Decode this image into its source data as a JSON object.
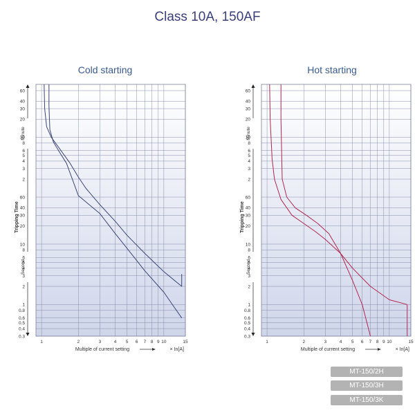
{
  "page": {
    "title": "Class 10A, 150AF",
    "models": [
      "MT-150/2H",
      "MT-150/3H",
      "MT-150/3K"
    ]
  },
  "chart_data": [
    {
      "type": "line",
      "title": "Cold starting",
      "xlabel": "Multiple of current setting",
      "x_unit": "× In[A]",
      "ylabel": "Tripping Time",
      "y_unit_minute": "Minute",
      "y_unit_second": "Second",
      "x_scale": "log",
      "y_scale": "log",
      "xlim": [
        0.9,
        15
      ],
      "x_ticks": [
        1,
        2,
        3,
        4,
        5,
        6,
        7,
        8,
        9,
        10,
        15
      ],
      "y_ticks_minute": [
        60,
        40,
        30,
        20,
        10,
        8,
        6,
        5,
        4,
        3,
        2
      ],
      "y_ticks_second": [
        60,
        40,
        30,
        20,
        10,
        8,
        6,
        5,
        4,
        3,
        2,
        1,
        0.8,
        0.6,
        0.5,
        0.4,
        0.3
      ],
      "grid": true,
      "color": "#3a4575",
      "series": [
        {
          "x": [
            1.05,
            1.06,
            1.1,
            1.2,
            1.4,
            1.7,
            2.0,
            2.3,
            3,
            4,
            5,
            7,
            10,
            14,
            14
          ],
          "y_seconds": [
            4800,
            1800,
            900,
            600,
            390,
            225,
            130,
            90,
            45,
            24,
            14,
            7,
            3.5,
            2,
            3.2
          ]
        },
        {
          "x": [
            1.15,
            1.15,
            1.17,
            1.25,
            1.4,
            1.6,
            2.0,
            3,
            4,
            5,
            7,
            10,
            14
          ],
          "y_seconds": [
            4800,
            2000,
            800,
            500,
            340,
            220,
            65,
            32,
            15,
            8.5,
            3.6,
            1.6,
            0.6
          ]
        }
      ]
    },
    {
      "type": "line",
      "title": "Hot starting",
      "xlabel": "Multiple of current setting",
      "x_unit": "× In[A]",
      "ylabel": "Tripping Time",
      "y_unit_minute": "Minute",
      "y_unit_second": "Second",
      "x_scale": "log",
      "y_scale": "log",
      "xlim": [
        0.9,
        15
      ],
      "x_ticks": [
        1,
        2,
        3,
        4,
        5,
        6,
        7,
        8,
        9,
        10,
        15
      ],
      "y_ticks_minute": [
        60,
        40,
        30,
        20,
        10,
        8,
        6,
        5,
        4,
        3,
        2
      ],
      "y_ticks_second": [
        60,
        40,
        30,
        20,
        10,
        8,
        6,
        5,
        4,
        3,
        2,
        1,
        0.8,
        0.6,
        0.5,
        0.4,
        0.3
      ],
      "grid": true,
      "color": "#b0264f",
      "series": [
        {
          "x": [
            1.05,
            1.06,
            1.1,
            1.15,
            1.3,
            1.6,
            2.0,
            2.5,
            3,
            4,
            5,
            7,
            10,
            14,
            14
          ],
          "y_seconds": [
            4800,
            1200,
            260,
            120,
            55,
            30,
            22,
            16,
            12,
            7,
            4,
            2,
            1.2,
            1,
            0.3
          ]
        },
        {
          "x": [
            1.3,
            1.3,
            1.33,
            1.45,
            1.7,
            2.1,
            2.6,
            3.2,
            4,
            5,
            6,
            7
          ],
          "y_seconds": [
            4800,
            1200,
            120,
            60,
            40,
            30,
            22,
            15,
            7,
            2.5,
            1,
            0.3
          ]
        }
      ]
    }
  ]
}
